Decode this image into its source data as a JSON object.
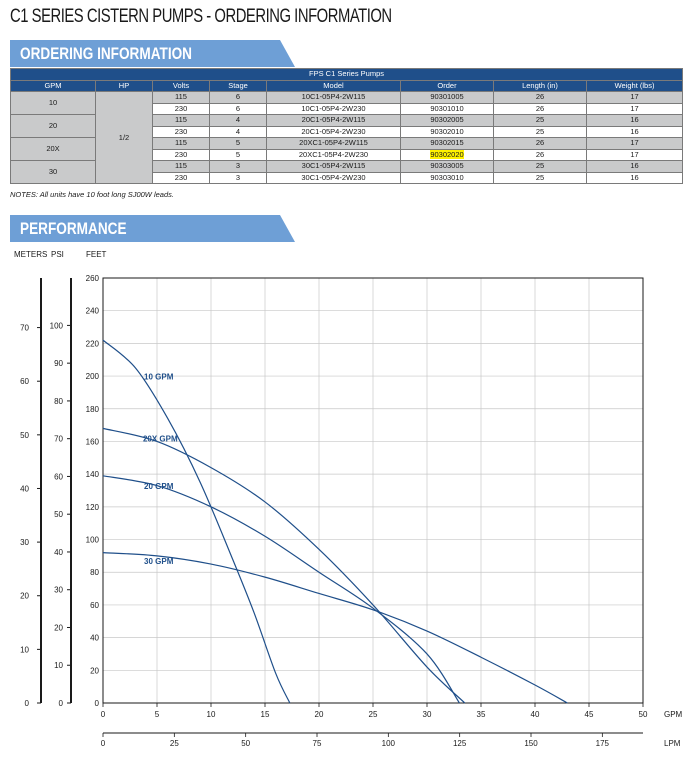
{
  "title": "C1 SERIES CISTERN PUMPS - ORDERING INFORMATION",
  "banners": {
    "ordering": "ORDERING INFORMATION",
    "performance": "PERFORMANCE"
  },
  "table": {
    "caption": "FPS C1 Series Pumps",
    "headers": [
      "GPM",
      "HP",
      "Volts",
      "Stage",
      "Model",
      "Order",
      "Length (in)",
      "Weight (lbs)"
    ],
    "hp": "1/2",
    "gpm_groups": [
      "10",
      "20",
      "20X",
      "30"
    ],
    "rows": [
      [
        "115",
        "6",
        "10C1-05P4-2W115",
        "90301005",
        "26",
        "17"
      ],
      [
        "230",
        "6",
        "10C1-05P4-2W230",
        "90301010",
        "26",
        "17"
      ],
      [
        "115",
        "4",
        "20C1-05P4-2W115",
        "90302005",
        "25",
        "16"
      ],
      [
        "230",
        "4",
        "20C1-05P4-2W230",
        "90302010",
        "25",
        "16"
      ],
      [
        "115",
        "5",
        "20XC1-05P4-2W115",
        "90302015",
        "26",
        "17"
      ],
      [
        "230",
        "5",
        "20XC1-05P4-2W230",
        "90302020",
        "26",
        "17"
      ],
      [
        "115",
        "3",
        "30C1-05P4-2W115",
        "90303005",
        "25",
        "16"
      ],
      [
        "230",
        "3",
        "30C1-05P4-2W230",
        "90303010",
        "25",
        "16"
      ]
    ],
    "highlight_color": "#fff200"
  },
  "notes": "NOTES: All units have 10 foot long SJ00W leads.",
  "axis_headers": {
    "meters": "METERS",
    "psi": "PSI",
    "feet": "FEET",
    "gpm": "GPM",
    "lpm": "LPM"
  },
  "chart_data": {
    "type": "line",
    "title": "",
    "xlabel": "GPM",
    "x2label": "LPM",
    "ylabel": "FEET",
    "xlim": [
      0,
      50
    ],
    "ylim": [
      0,
      260
    ],
    "x_ticks": [
      0,
      5,
      10,
      15,
      20,
      25,
      30,
      35,
      40,
      45,
      50
    ],
    "y_ticks": [
      0,
      20,
      40,
      60,
      80,
      100,
      120,
      140,
      160,
      180,
      200,
      220,
      240,
      260
    ],
    "lpm_ticks": [
      0,
      25,
      50,
      75,
      100,
      125,
      150,
      175
    ],
    "psi_ticks": [
      0,
      10,
      20,
      30,
      40,
      50,
      60,
      70,
      80,
      90,
      100
    ],
    "meter_ticks": [
      0,
      10,
      20,
      30,
      40,
      50,
      60,
      70
    ],
    "grid": true,
    "line_color": "#1f4f8a",
    "series": [
      {
        "name": "10 GPM",
        "x": [
          0,
          3,
          6,
          9,
          12,
          14,
          16,
          17.3
        ],
        "y": [
          222,
          205,
          174,
          135,
          88,
          55,
          18,
          0
        ]
      },
      {
        "name": "20X GPM",
        "x": [
          0,
          5,
          10,
          15,
          20,
          25,
          30,
          33.5
        ],
        "y": [
          168,
          160,
          144,
          123,
          94,
          60,
          22,
          0
        ]
      },
      {
        "name": "20 GPM",
        "x": [
          0,
          5,
          10,
          15,
          20,
          25,
          30,
          33
        ],
        "y": [
          139,
          133,
          120,
          102,
          80,
          58,
          30,
          0
        ]
      },
      {
        "name": "30 GPM",
        "x": [
          0,
          5,
          10,
          15,
          20,
          25,
          30,
          35,
          40,
          43
        ],
        "y": [
          92,
          90,
          85,
          77,
          67,
          57,
          44,
          28,
          11,
          0
        ]
      }
    ]
  }
}
